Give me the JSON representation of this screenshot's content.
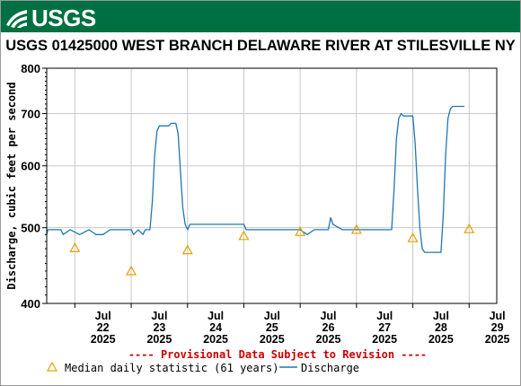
{
  "header": {
    "logo_text": "USGS"
  },
  "chart_data": {
    "type": "line",
    "title": "USGS 01425000 WEST BRANCH DELAWARE RIVER AT STILESVILLE NY",
    "ylabel": "Discharge, cubic feet per second",
    "xlabel": "",
    "ylim": [
      400,
      800
    ],
    "y_scale": "log",
    "y_ticks": [
      "800",
      "700",
      "600",
      "500",
      "400"
    ],
    "x_ticks": [
      {
        "month": "Jul",
        "day": "22",
        "year": "2025"
      },
      {
        "month": "Jul",
        "day": "23",
        "year": "2025"
      },
      {
        "month": "Jul",
        "day": "24",
        "year": "2025"
      },
      {
        "month": "Jul",
        "day": "25",
        "year": "2025"
      },
      {
        "month": "Jul",
        "day": "26",
        "year": "2025"
      },
      {
        "month": "Jul",
        "day": "27",
        "year": "2025"
      },
      {
        "month": "Jul",
        "day": "28",
        "year": "2025"
      },
      {
        "month": "Jul",
        "day": "29",
        "year": "2025"
      }
    ],
    "grid": true,
    "provisional_note": "---- Provisional Data Subject to Revision ----",
    "legend": {
      "median_label": "Median daily statistic (61 years)",
      "discharge_label": "Discharge"
    },
    "colors": {
      "discharge": "#1f77b4",
      "median": "#e6a000",
      "provisional": "#cc0000",
      "header": "#006f41"
    },
    "series": [
      {
        "name": "Discharge",
        "points": [
          [
            "2025-07-21 12:00",
            490
          ],
          [
            "2025-07-21 12:30",
            497
          ],
          [
            "2025-07-21 18:00",
            497
          ],
          [
            "2025-07-21 19:00",
            490
          ],
          [
            "2025-07-21 22:00",
            497
          ],
          [
            "2025-07-22 02:00",
            490
          ],
          [
            "2025-07-22 06:00",
            497
          ],
          [
            "2025-07-22 09:00",
            490
          ],
          [
            "2025-07-22 12:00",
            490
          ],
          [
            "2025-07-22 15:00",
            497
          ],
          [
            "2025-07-23 00:00",
            497
          ],
          [
            "2025-07-23 01:00",
            490
          ],
          [
            "2025-07-23 03:00",
            497
          ],
          [
            "2025-07-23 05:00",
            490
          ],
          [
            "2025-07-23 06:00",
            497
          ],
          [
            "2025-07-23 08:00",
            497
          ],
          [
            "2025-07-23 09:00",
            540
          ],
          [
            "2025-07-23 10:00",
            620
          ],
          [
            "2025-07-23 11:00",
            665
          ],
          [
            "2025-07-23 12:00",
            675
          ],
          [
            "2025-07-23 16:00",
            675
          ],
          [
            "2025-07-23 17:00",
            680
          ],
          [
            "2025-07-23 19:00",
            680
          ],
          [
            "2025-07-23 20:00",
            660
          ],
          [
            "2025-07-23 21:00",
            590
          ],
          [
            "2025-07-23 22:00",
            530
          ],
          [
            "2025-07-23 23:00",
            505
          ],
          [
            "2025-07-24 00:00",
            497
          ],
          [
            "2025-07-24 01:00",
            505
          ],
          [
            "2025-07-24 06:00",
            505
          ],
          [
            "2025-07-24 12:00",
            505
          ],
          [
            "2025-07-24 21:00",
            505
          ],
          [
            "2025-07-25 00:00",
            505
          ],
          [
            "2025-07-25 01:00",
            497
          ],
          [
            "2025-07-25 06:00",
            497
          ],
          [
            "2025-07-25 12:00",
            497
          ],
          [
            "2025-07-26 00:00",
            497
          ],
          [
            "2025-07-26 03:00",
            490
          ],
          [
            "2025-07-26 06:00",
            497
          ],
          [
            "2025-07-26 12:00",
            497
          ],
          [
            "2025-07-26 13:00",
            515
          ],
          [
            "2025-07-26 14:00",
            505
          ],
          [
            "2025-07-26 18:00",
            497
          ],
          [
            "2025-07-27 12:00",
            497
          ],
          [
            "2025-07-27 15:00",
            497
          ],
          [
            "2025-07-27 16:00",
            560
          ],
          [
            "2025-07-27 17:00",
            650
          ],
          [
            "2025-07-27 18:00",
            690
          ],
          [
            "2025-07-27 19:00",
            700
          ],
          [
            "2025-07-27 20:00",
            695
          ],
          [
            "2025-07-28 00:00",
            695
          ],
          [
            "2025-07-28 01:00",
            640
          ],
          [
            "2025-07-28 02:00",
            560
          ],
          [
            "2025-07-28 03:00",
            500
          ],
          [
            "2025-07-28 04:00",
            470
          ],
          [
            "2025-07-28 05:00",
            465
          ],
          [
            "2025-07-28 12:00",
            465
          ],
          [
            "2025-07-28 13:00",
            520
          ],
          [
            "2025-07-28 14:00",
            620
          ],
          [
            "2025-07-28 15:00",
            690
          ],
          [
            "2025-07-28 16:00",
            710
          ],
          [
            "2025-07-28 17:00",
            715
          ],
          [
            "2025-07-28 22:00",
            715
          ]
        ]
      },
      {
        "name": "Median daily statistic (61 years)",
        "points": [
          [
            "2025-07-22 00:00",
            471
          ],
          [
            "2025-07-23 00:00",
            440
          ],
          [
            "2025-07-24 00:00",
            468
          ],
          [
            "2025-07-25 00:00",
            488
          ],
          [
            "2025-07-26 00:00",
            494
          ],
          [
            "2025-07-27 00:00",
            497
          ],
          [
            "2025-07-28 00:00",
            485
          ],
          [
            "2025-07-29 00:00",
            498
          ]
        ]
      }
    ]
  }
}
